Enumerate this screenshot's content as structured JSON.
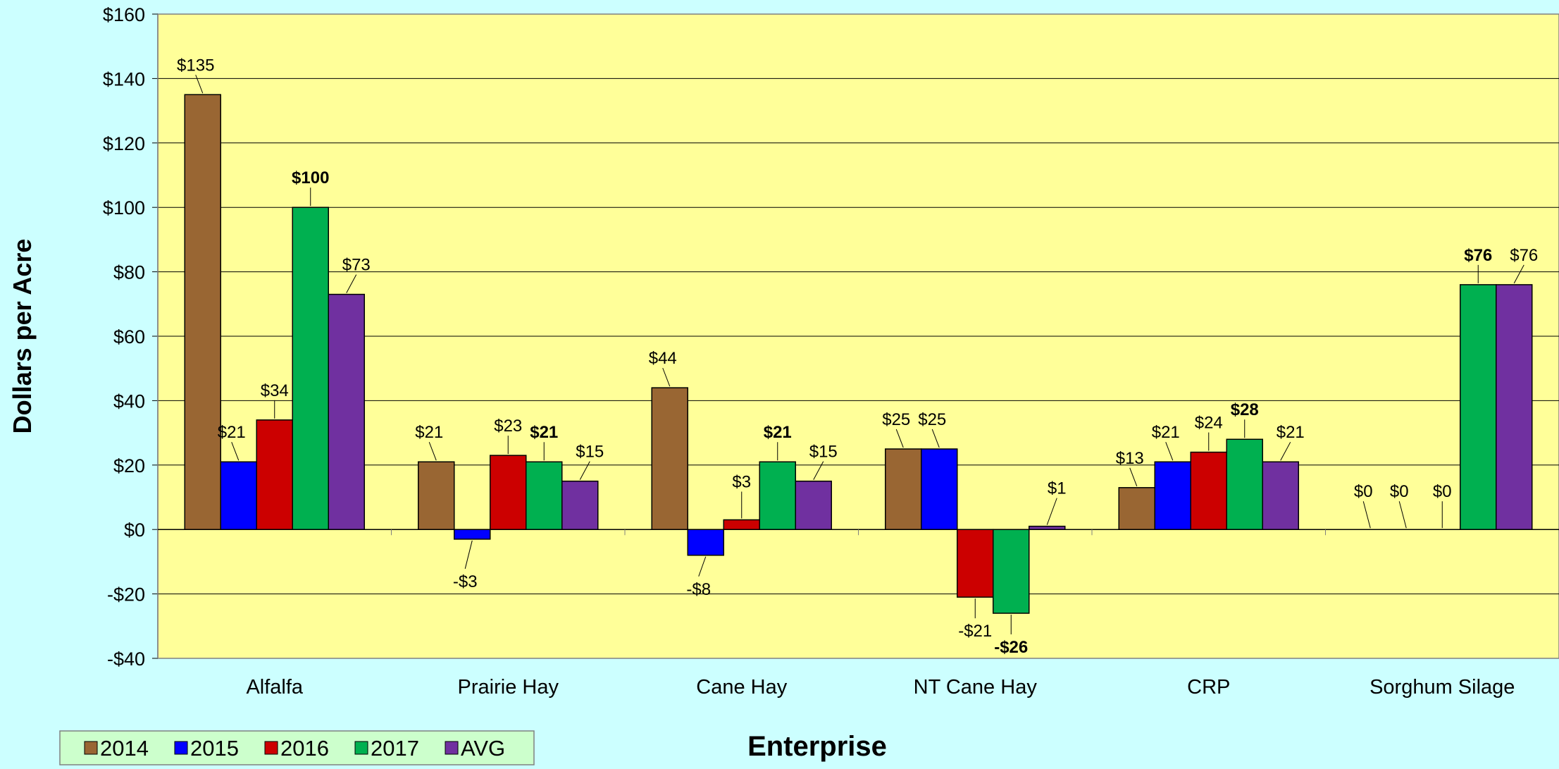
{
  "chart_data": {
    "type": "bar",
    "title": "",
    "xlabel": "Enterprise",
    "ylabel": "Dollars per Acre",
    "ylim": [
      -40,
      160
    ],
    "y_ticks": [
      160,
      140,
      120,
      100,
      80,
      60,
      40,
      20,
      0,
      -20,
      -40
    ],
    "y_tick_labels": [
      "$160",
      "$140",
      "$120",
      "$100",
      "$80",
      "$60",
      "$40",
      "$20",
      "$0",
      "-$20",
      "-$40"
    ],
    "grid": true,
    "legend_position": "bottom-left",
    "categories": [
      "Alfalfa",
      "Prairie Hay",
      "Cane Hay",
      "NT Cane Hay",
      "CRP",
      "Sorghum Silage"
    ],
    "series": [
      {
        "name": "2014",
        "color": "#996633",
        "values": [
          135,
          21,
          44,
          25,
          13,
          0
        ],
        "labels": [
          "$135",
          "$21",
          "$44",
          "$25",
          "$13",
          "$0"
        ],
        "bold": false
      },
      {
        "name": "2015",
        "color": "#0000FF",
        "values": [
          21,
          -3,
          -8,
          25,
          21,
          0
        ],
        "labels": [
          "$21",
          "-$3",
          "-$8",
          "$25",
          "$21",
          "$0"
        ],
        "bold": false
      },
      {
        "name": "2016",
        "color": "#CC0000",
        "values": [
          34,
          23,
          3,
          -21,
          24,
          0
        ],
        "labels": [
          "$34",
          "$23",
          "$3",
          "-$21",
          "$24",
          "$0"
        ],
        "bold": false
      },
      {
        "name": "2017",
        "color": "#00B050",
        "values": [
          100,
          21,
          21,
          -26,
          28,
          76
        ],
        "labels": [
          "$100",
          "$21",
          "$21",
          "-$26",
          "$28",
          "$76"
        ],
        "bold": true
      },
      {
        "name": "AVG",
        "color": "#7030A0",
        "values": [
          73,
          15,
          15,
          1,
          21,
          76
        ],
        "labels": [
          "$73",
          "$15",
          "$15",
          "$1",
          "$21",
          "$76"
        ],
        "bold": false
      }
    ]
  },
  "colors": {
    "page_background": "#CCFFFF",
    "plot_background": "#FFFF99",
    "legend_background": "#CCFFCC",
    "gridline": "#000000"
  }
}
